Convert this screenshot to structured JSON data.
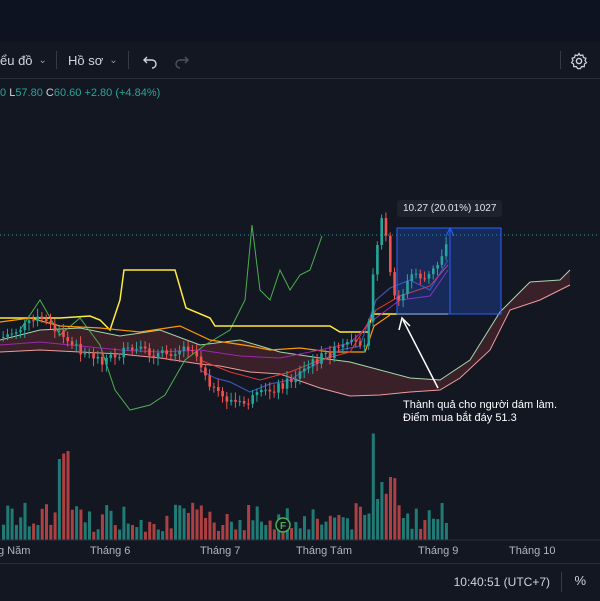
{
  "toolbar": {
    "chart_menu_label": "ểu đồ",
    "profile_menu_label": "Hồ sơ",
    "undo_icon": "undo-icon",
    "redo_icon": "redo-icon",
    "settings_icon": "gear-icon"
  },
  "legend": {
    "low_label": "L",
    "low_value": "57.80",
    "close_label": "C",
    "close_value": "60.60",
    "change": "+2.80 (+4.84%)"
  },
  "measure": {
    "text": "10.27 (20.01%) 1027"
  },
  "annotation": {
    "line1": "Thành quả cho người dám làm.",
    "line2": "Điểm mua bắt đáy 51.3"
  },
  "volume_marker": "F",
  "x_axis": {
    "ticks": [
      "g Năm",
      "Tháng 6",
      "Tháng 7",
      "Tháng Tám",
      "Tháng 9",
      "Tháng 10"
    ]
  },
  "status": {
    "time": "10:40:51 (UTC+7)",
    "percent_toggle": "%"
  },
  "colors": {
    "up": "#26a69a",
    "down": "#ef5350",
    "background": "#131722",
    "baseline": "#fbc02d",
    "measure_fill": "#2962ff"
  }
}
